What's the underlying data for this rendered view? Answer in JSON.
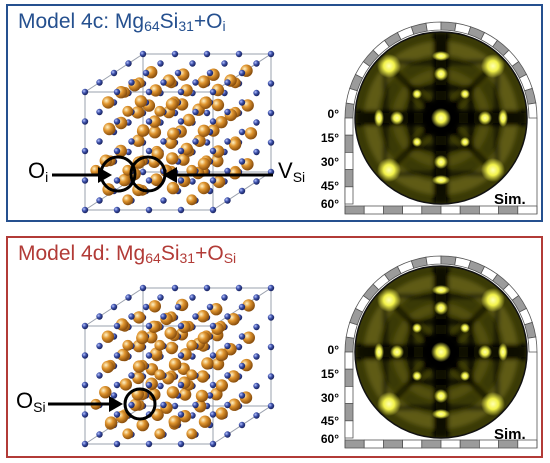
{
  "panels": [
    {
      "title": {
        "prefix": "Model 4c: Mg",
        "n1": "64",
        "mid": "Si",
        "n2": "31",
        "suffix": "+O",
        "sub3": "i"
      },
      "left_label": {
        "main": "O",
        "sub": "i"
      },
      "right_label": {
        "main": "V",
        "sub": "Si"
      },
      "angles": [
        "0°",
        "15°",
        "30°",
        "45°",
        "60°"
      ],
      "sim_label": "Sim.",
      "colors": {
        "border": "#25508f",
        "title": "#25508f"
      }
    },
    {
      "title": {
        "prefix": "Model 4d: Mg",
        "n1": "64",
        "mid": "Si",
        "n2": "31",
        "suffix": "+O",
        "sub3": "Si"
      },
      "left_label": {
        "main": "O",
        "sub": "Si"
      },
      "angles": [
        "0°",
        "15°",
        "30°",
        "45°",
        "60°"
      ],
      "sim_label": "Sim.",
      "colors": {
        "border": "#b23b37",
        "title": "#b23b37"
      }
    }
  ],
  "atom_colors": {
    "mg": "#3b4fa8",
    "si": "#e0952e"
  },
  "pattern_colors": {
    "background": "#3a3a06",
    "bright": "#f2f24a",
    "dark": "#050500"
  }
}
